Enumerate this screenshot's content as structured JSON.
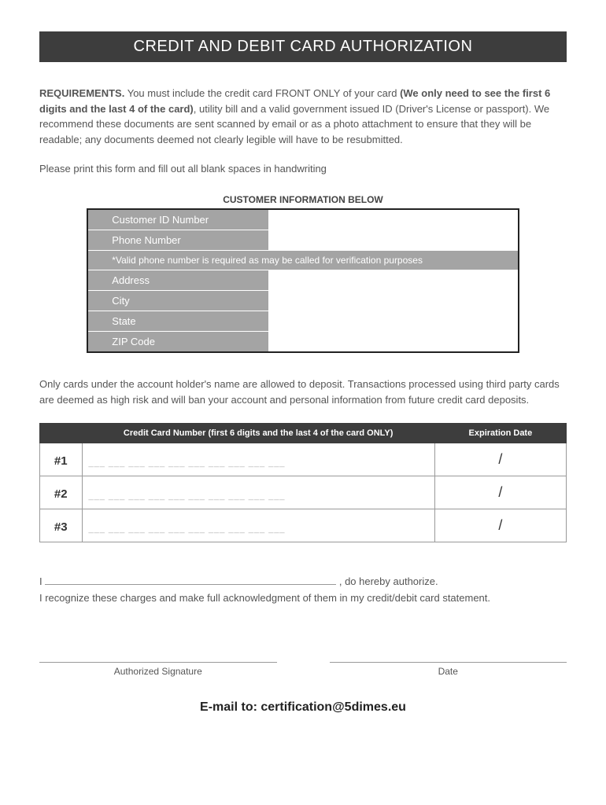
{
  "title": "CREDIT AND DEBIT CARD AUTHORIZATION",
  "requirements": {
    "label": "REQUIREMENTS.",
    "text1": " You must include the credit card FRONT ONLY of your  card ",
    "bold1": "(We only need to see the first 6 digits and the last 4 of the card)",
    "text2": ", utility bill and a valid government issued ID (Driver's License or passport). We recommend these documents are sent scanned by email or as a photo attachment to ensure that they will be readable; any documents deemed not clearly legible will have to be resubmitted."
  },
  "print_instruction": "Please print this form and fill out all blank spaces in handwriting",
  "cust_info_header": "CUSTOMER INFORMATION BELOW",
  "cust_fields": {
    "id": "Customer ID Number",
    "phone": "Phone Number",
    "phone_note": "*Valid phone number is required as may be called for verification purposes",
    "address": "Address",
    "city": "City",
    "state": "State",
    "zip": "ZIP Code"
  },
  "cards_note": "Only cards under the account holder's name are allowed to deposit.  Transactions processed using third party cards are deemed as high risk and will ban your account and personal information from future credit card deposits.",
  "cc_table": {
    "header_cc": "Credit Card Number (first 6 digits and the last 4 of the card ONLY)",
    "header_exp": "Expiration Date",
    "rows": [
      "#1",
      "#2",
      "#3"
    ],
    "digit_placeholder": "___  ___  ___  ___  ___  ___            ___  ___  ___  ___",
    "slash": "/"
  },
  "auth": {
    "line1_prefix": "I ",
    "line1_suffix": " ,  do  hereby  authorize.",
    "line2": "I recognize these charges and make full acknowledgment of them in my credit/debit card statement."
  },
  "signature_label": "Authorized Signature",
  "date_label": "Date",
  "footer": "E-mail to: certification@5dimes.eu"
}
